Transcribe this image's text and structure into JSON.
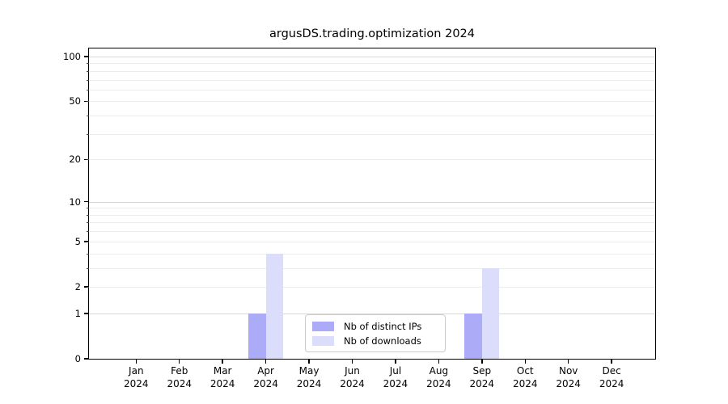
{
  "title": "argusDS.trading.optimization 2024",
  "colors": {
    "distinct_ips": "#ababf8",
    "downloads": "#dcddfa",
    "grid_minor": "#ececec",
    "grid_major": "#d8d8d8",
    "spine": "#000000",
    "legend_border": "#cccccc",
    "background": "#ffffff",
    "text": "#000000"
  },
  "legend": {
    "items": [
      {
        "label": "Nb of distinct IPs",
        "color": "#ababf8"
      },
      {
        "label": "Nb of downloads",
        "color": "#dcddfa"
      }
    ]
  },
  "x_axis": {
    "months": [
      "Jan",
      "Feb",
      "Mar",
      "Apr",
      "May",
      "Jun",
      "Jul",
      "Aug",
      "Sep",
      "Oct",
      "Nov",
      "Dec"
    ],
    "year": "2024"
  },
  "y_axis": {
    "tick_labels": [
      "0",
      "1",
      "2",
      "5",
      "10",
      "20",
      "50",
      "100"
    ]
  },
  "chart_data": {
    "type": "bar",
    "title": "argusDS.trading.optimization 2024",
    "categories": [
      "Jan 2024",
      "Feb 2024",
      "Mar 2024",
      "Apr 2024",
      "May 2024",
      "Jun 2024",
      "Jul 2024",
      "Aug 2024",
      "Sep 2024",
      "Oct 2024",
      "Nov 2024",
      "Dec 2024"
    ],
    "series": [
      {
        "name": "Nb of distinct IPs",
        "color": "#ababf8",
        "values": [
          0,
          0,
          0,
          1,
          0,
          0,
          0,
          0,
          1,
          0,
          0,
          0
        ]
      },
      {
        "name": "Nb of downloads",
        "color": "#dcddfa",
        "values": [
          0,
          0,
          0,
          4,
          0,
          0,
          0,
          0,
          3,
          0,
          0,
          0
        ]
      }
    ],
    "xlabel": "",
    "ylabel": "",
    "yscale": "log1p",
    "ylim": [
      0,
      113.2
    ],
    "y_ticks": [
      0,
      1,
      2,
      5,
      10,
      20,
      50,
      100
    ],
    "y_major_gridlines": [
      1,
      10,
      100
    ],
    "y_minor_gridlines": [
      2,
      3,
      4,
      5,
      6,
      7,
      8,
      9,
      20,
      30,
      40,
      50,
      60,
      70,
      80,
      90
    ],
    "grid": true,
    "legend_position": "lower center",
    "bar_width_fraction": 0.4
  }
}
